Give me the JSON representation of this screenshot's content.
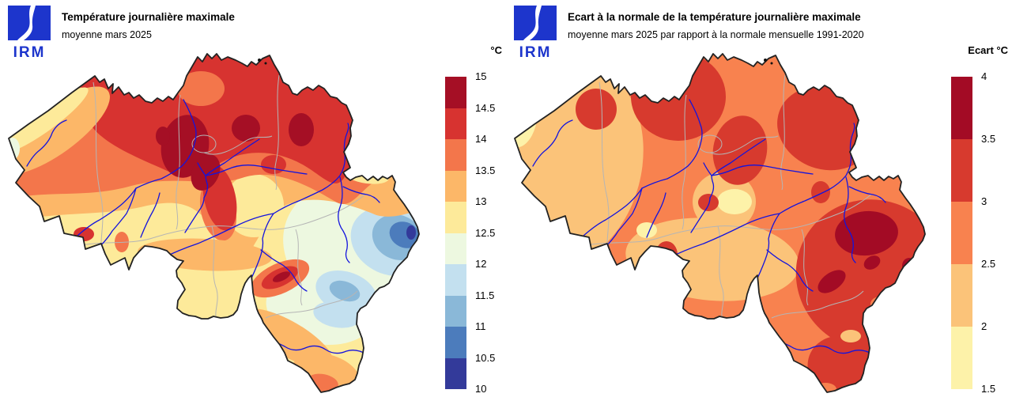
{
  "left_panel": {
    "logo": {
      "text": "IRM",
      "color": "#1d35cc"
    },
    "title": "Température journalière maximale",
    "subtitle": "moyenne mars 2025",
    "colorbar": {
      "unit_label": "°C",
      "tick_labels": [
        "15",
        "14.5",
        "14",
        "13.5",
        "13",
        "12.5",
        "12",
        "11.5",
        "11",
        "10.5",
        "10"
      ],
      "segment_colors_top_to_bottom": [
        "#a50f25",
        "#d73330",
        "#f3764b",
        "#fcb768",
        "#fdea9a",
        "#edf8e0",
        "#c3e0ef",
        "#8ab8d8",
        "#4c7cbc",
        "#333a9a"
      ]
    }
  },
  "right_panel": {
    "logo": {
      "text": "IRM",
      "color": "#1d35cc"
    },
    "title": "Ecart à la normale de la température journalière maximale",
    "subtitle": "moyenne mars 2025 par rapport à la normale mensuelle 1991-2020",
    "colorbar": {
      "unit_label": "Ecart °C",
      "tick_labels": [
        "4",
        "3.5",
        "3",
        "2.5",
        "2",
        "1.5"
      ],
      "segment_colors_top_to_bottom": [
        "#a30b25",
        "#d73a2e",
        "#f8824f",
        "#fbc379",
        "#fdf2a9"
      ]
    }
  },
  "map_colors": {
    "river": "#1414dd",
    "province_border": "#b5b5b5",
    "country_border": "#222222",
    "sea": "#ffffff"
  }
}
